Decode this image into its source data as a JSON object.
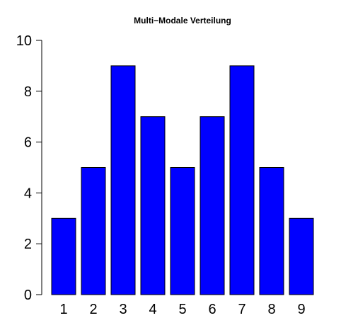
{
  "chart_data": {
    "type": "bar",
    "title": "Multi−Modale Verteilung",
    "xlabel": "",
    "ylabel": "",
    "categories": [
      "1",
      "2",
      "3",
      "4",
      "5",
      "6",
      "7",
      "8",
      "9"
    ],
    "values": [
      3,
      5,
      9,
      7,
      5,
      7,
      9,
      5,
      3
    ],
    "ylim": [
      0,
      10
    ],
    "yticks": [
      0,
      2,
      4,
      6,
      8,
      10
    ],
    "bar_color": "#0000FF",
    "bar_border_color": "#000000",
    "grid": false,
    "legend": false
  }
}
